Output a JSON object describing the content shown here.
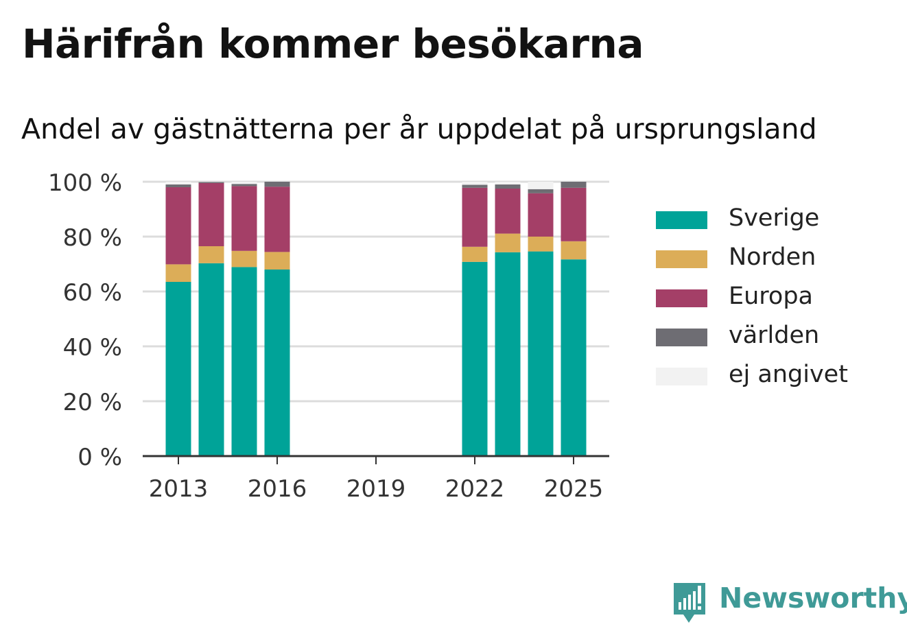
{
  "header": {
    "title": "Härifrån kommer besökarna",
    "subtitle": "Andel av gästnätterna per år uppdelat på ursprungsland"
  },
  "brand": {
    "name": "Newsworthy",
    "icon": "newsworthy-logo-icon",
    "color": "#3f9a97"
  },
  "legend": {
    "items": [
      {
        "label": "Sverige",
        "color": "#00a398"
      },
      {
        "label": "Norden",
        "color": "#dcad58"
      },
      {
        "label": "Europa",
        "color": "#a43f67"
      },
      {
        "label": "världen",
        "color": "#6e6d73"
      },
      {
        "label": "ej angivet",
        "color": "#f2f2f2"
      }
    ]
  },
  "chart_data": {
    "type": "bar",
    "stacked": true,
    "categories": [
      2013,
      2014,
      2015,
      2016,
      2022,
      2023,
      2024,
      2025
    ],
    "x_axis": {
      "range": [
        2012,
        2026
      ],
      "ticks": [
        2013,
        2016,
        2019,
        2022,
        2025
      ],
      "tick_labels": [
        "2013",
        "2016",
        "2019",
        "2022",
        "2025"
      ]
    },
    "y_axis": {
      "range": [
        0,
        100
      ],
      "ticks": [
        0,
        20,
        40,
        60,
        80,
        100
      ],
      "tick_labels": [
        "0 %",
        "20 %",
        "40 %",
        "60 %",
        "80 %",
        "100 %"
      ]
    },
    "grid": true,
    "legend_position": "right",
    "series": [
      {
        "name": "Sverige",
        "color": "#00a398",
        "values": [
          63.5,
          70.3,
          68.9,
          68.0,
          70.8,
          74.3,
          74.6,
          71.7
        ]
      },
      {
        "name": "Norden",
        "color": "#dcad58",
        "values": [
          6.4,
          6.2,
          5.9,
          6.4,
          5.5,
          6.8,
          5.4,
          6.6
        ]
      },
      {
        "name": "Europa",
        "color": "#a43f67",
        "values": [
          28.1,
          23.0,
          23.6,
          23.8,
          21.5,
          16.4,
          15.8,
          19.5
        ]
      },
      {
        "name": "världen",
        "color": "#6e6d73",
        "values": [
          1.0,
          0.4,
          0.8,
          1.8,
          1.1,
          1.5,
          1.5,
          2.2
        ]
      },
      {
        "name": "ej angivet",
        "color": "#f2f2f2",
        "values": [
          1.0,
          0.1,
          0.8,
          0.0,
          1.1,
          1.0,
          2.7,
          0.0
        ]
      }
    ]
  }
}
